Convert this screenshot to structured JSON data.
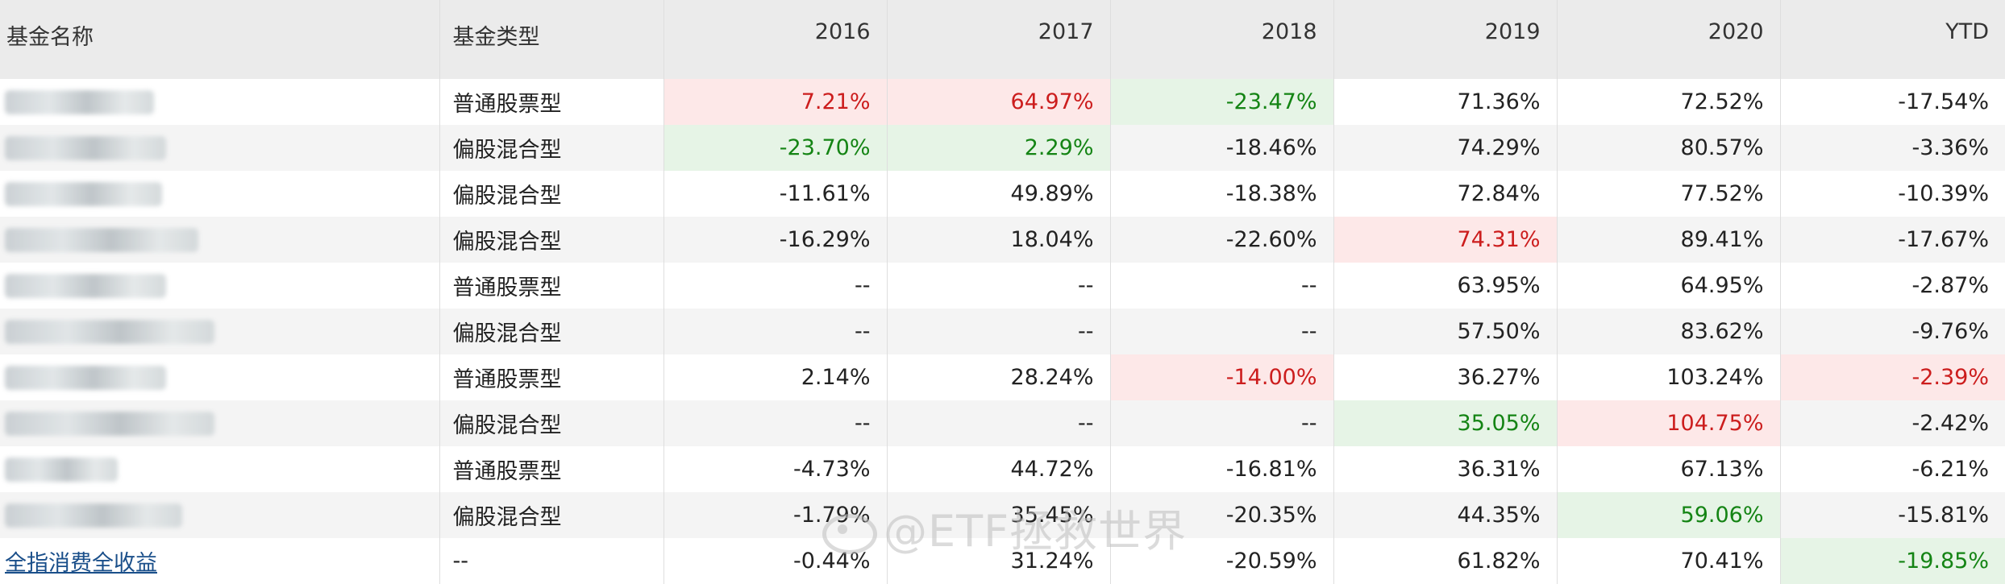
{
  "table": {
    "headers": [
      "基金名称",
      "基金类型",
      "2016",
      "2017",
      "2018",
      "2019",
      "2020",
      "YTD"
    ],
    "rows": [
      {
        "name": "",
        "type": "普通股票型",
        "values": [
          "7.21%",
          "64.97%",
          "-23.47%",
          "71.36%",
          "72.52%",
          "-17.54%"
        ]
      },
      {
        "name": "",
        "type": "偏股混合型",
        "values": [
          "-23.70%",
          "2.29%",
          "-18.46%",
          "74.29%",
          "80.57%",
          "-3.36%"
        ]
      },
      {
        "name": "",
        "type": "偏股混合型",
        "values": [
          "-11.61%",
          "49.89%",
          "-18.38%",
          "72.84%",
          "77.52%",
          "-10.39%"
        ]
      },
      {
        "name": "",
        "type": "偏股混合型",
        "values": [
          "-16.29%",
          "18.04%",
          "-22.60%",
          "74.31%",
          "89.41%",
          "-17.67%"
        ]
      },
      {
        "name": "",
        "type": "普通股票型",
        "values": [
          "--",
          "--",
          "--",
          "63.95%",
          "64.95%",
          "-2.87%"
        ]
      },
      {
        "name": "",
        "type": "偏股混合型",
        "values": [
          "--",
          "--",
          "--",
          "57.50%",
          "83.62%",
          "-9.76%"
        ]
      },
      {
        "name": "",
        "type": "普通股票型",
        "values": [
          "2.14%",
          "28.24%",
          "-14.00%",
          "36.27%",
          "103.24%",
          "-2.39%"
        ]
      },
      {
        "name": "",
        "type": "偏股混合型",
        "values": [
          "--",
          "--",
          "--",
          "35.05%",
          "104.75%",
          "-2.42%"
        ]
      },
      {
        "name": "",
        "type": "普通股票型",
        "values": [
          "-4.73%",
          "44.72%",
          "-16.81%",
          "36.31%",
          "67.13%",
          "-6.21%"
        ]
      },
      {
        "name": "",
        "type": "偏股混合型",
        "values": [
          "-1.79%",
          "35.45%",
          "-20.35%",
          "44.35%",
          "59.06%",
          "-15.81%"
        ]
      },
      {
        "name": "全指消费全收益",
        "type": "--",
        "values": [
          "-0.44%",
          "31.24%",
          "-20.59%",
          "61.82%",
          "70.41%",
          "-19.85%"
        ]
      }
    ],
    "highlights": [
      [
        "up",
        "up",
        "down",
        "",
        "",
        ""
      ],
      [
        "down",
        "down",
        "",
        "",
        "",
        ""
      ],
      [
        "",
        "",
        "",
        "",
        "",
        ""
      ],
      [
        "",
        "",
        "",
        "up",
        "",
        ""
      ],
      [
        "",
        "",
        "",
        "",
        "",
        ""
      ],
      [
        "",
        "",
        "",
        "",
        "",
        ""
      ],
      [
        "",
        "",
        "up",
        "",
        "",
        "up"
      ],
      [
        "",
        "",
        "",
        "down",
        "up",
        ""
      ],
      [
        "",
        "",
        "",
        "",
        "",
        ""
      ],
      [
        "",
        "",
        "",
        "",
        "down",
        ""
      ],
      [
        "",
        "",
        "",
        "",
        "",
        "down"
      ]
    ]
  },
  "watermark": {
    "text": "@ETF拯救世界"
  },
  "colors": {
    "up_bg": "#fde8e8",
    "up_text": "#cc1d1d",
    "down_bg": "#e6f4e6",
    "down_text": "#148414",
    "header_bg": "#ebebeb"
  }
}
